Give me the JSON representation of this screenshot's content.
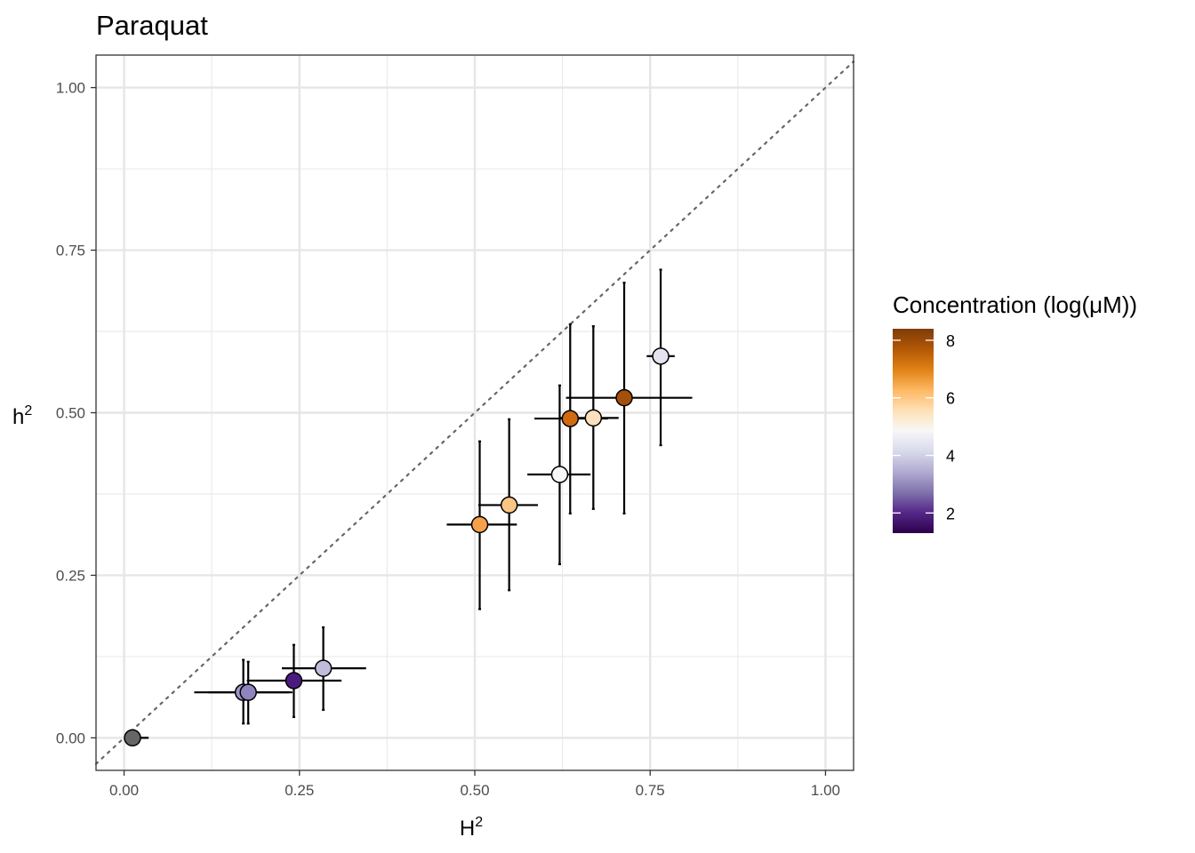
{
  "chart_data": {
    "type": "scatter",
    "title": "Paraquat",
    "xlabel": "H",
    "xlabel_sup": "2",
    "ylabel": "h",
    "ylabel_sup": "2",
    "xlim": [
      -0.04,
      1.04
    ],
    "ylim": [
      -0.05,
      1.05
    ],
    "xticks": [
      0.0,
      0.25,
      0.5,
      0.75,
      1.0
    ],
    "xtick_labels": [
      "0.00",
      "0.25",
      "0.50",
      "0.75",
      "1.00"
    ],
    "yticks": [
      0.0,
      0.25,
      0.5,
      0.75,
      1.0
    ],
    "ytick_labels": [
      "0.00",
      "0.25",
      "0.50",
      "0.75",
      "1.00"
    ],
    "grid": true,
    "reference_line": "identity (dotted)",
    "legend": {
      "title": "Concentration (log(μM))",
      "placement": "right",
      "breaks": [
        2,
        4,
        6,
        8
      ],
      "break_labels": [
        "2",
        "4",
        "6",
        "8"
      ],
      "range": [
        1.3,
        8.4
      ],
      "colors": [
        "#2d004b",
        "#542788",
        "#8073ac",
        "#b2abd2",
        "#d8daeb",
        "#f7f7f7",
        "#fee0b6",
        "#fdb863",
        "#e08214",
        "#b35806",
        "#7f3b08"
      ]
    },
    "points": [
      {
        "H2": 0.012,
        "h2": 0.0,
        "H2_lo": 0.0,
        "H2_hi": 0.035,
        "h2_lo": 0.0,
        "h2_hi": 0.0,
        "color": "#666666"
      },
      {
        "H2": 0.17,
        "h2": 0.07,
        "H2_lo": 0.1,
        "H2_hi": 0.24,
        "h2_lo": 0.022,
        "h2_hi": 0.12,
        "color": "#9e94c6"
      },
      {
        "H2": 0.177,
        "h2": 0.07,
        "H2_lo": 0.12,
        "H2_hi": 0.235,
        "h2_lo": 0.022,
        "h2_hi": 0.117,
        "color": "#8f84bd"
      },
      {
        "H2": 0.242,
        "h2": 0.088,
        "H2_lo": 0.175,
        "H2_hi": 0.31,
        "h2_lo": 0.032,
        "h2_hi": 0.143,
        "color": "#4a1c80"
      },
      {
        "H2": 0.284,
        "h2": 0.107,
        "H2_lo": 0.225,
        "H2_hi": 0.345,
        "h2_lo": 0.043,
        "h2_hi": 0.17,
        "color": "#c1bcdc"
      },
      {
        "H2": 0.507,
        "h2": 0.328,
        "H2_lo": 0.46,
        "H2_hi": 0.56,
        "h2_lo": 0.198,
        "h2_hi": 0.456,
        "color": "#f5a14a"
      },
      {
        "H2": 0.549,
        "h2": 0.358,
        "H2_lo": 0.505,
        "H2_hi": 0.59,
        "h2_lo": 0.227,
        "h2_hi": 0.49,
        "color": "#fbc583"
      },
      {
        "H2": 0.621,
        "h2": 0.405,
        "H2_lo": 0.575,
        "H2_hi": 0.665,
        "h2_lo": 0.267,
        "h2_hi": 0.542,
        "color": "#f7f7f7"
      },
      {
        "H2": 0.636,
        "h2": 0.491,
        "H2_lo": 0.585,
        "H2_hi": 0.69,
        "h2_lo": 0.345,
        "h2_hi": 0.636,
        "color": "#cf6a10"
      },
      {
        "H2": 0.669,
        "h2": 0.492,
        "H2_lo": 0.62,
        "H2_hi": 0.705,
        "h2_lo": 0.352,
        "h2_hi": 0.633,
        "color": "#fbe0bd"
      },
      {
        "H2": 0.713,
        "h2": 0.523,
        "H2_lo": 0.63,
        "H2_hi": 0.81,
        "h2_lo": 0.345,
        "h2_hi": 0.7,
        "color": "#a3500b"
      },
      {
        "H2": 0.765,
        "h2": 0.587,
        "H2_lo": 0.745,
        "H2_hi": 0.785,
        "h2_lo": 0.45,
        "h2_hi": 0.72,
        "color": "#e4e3f0"
      }
    ]
  }
}
